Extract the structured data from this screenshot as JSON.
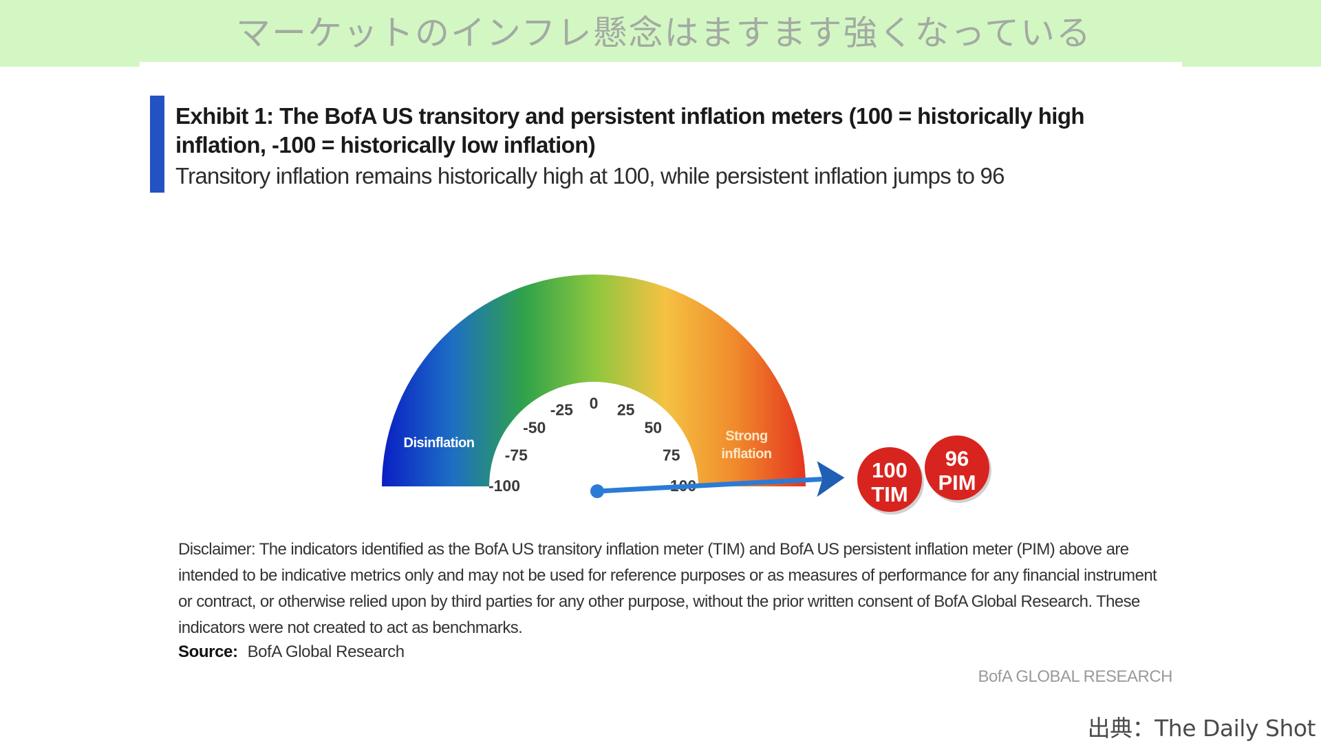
{
  "banner": {
    "title": "マーケットのインフレ懸念はますます強くなっている",
    "background": "#d3f7c3"
  },
  "exhibit": {
    "title": "Exhibit 1:  The BofA US transitory and persistent inflation meters (100 = historically high inflation, -100 = historically low inflation)",
    "subtitle": "Transitory inflation remains historically high at 100, while persistent inflation jumps to 96",
    "accent_color": "#2352c4"
  },
  "chart_data": {
    "type": "gauge",
    "scale_min": -100,
    "scale_max": 100,
    "ticks": [
      "-100",
      "-75",
      "-50",
      "-25",
      "0",
      "25",
      "50",
      "75",
      "100"
    ],
    "tick_values": [
      -100,
      -75,
      -50,
      -25,
      0,
      25,
      50,
      75,
      100
    ],
    "zone_labels": {
      "low": "Disinflation",
      "high_line1": "Strong",
      "high_line2": "inflation"
    },
    "color_stops": [
      "#0a1fc4",
      "#1d6fc4",
      "#2fa24a",
      "#8cc63f",
      "#f5c242",
      "#f08a2c",
      "#e5341f"
    ],
    "needle_value": 100,
    "indicators": [
      {
        "value": 100,
        "value_label": "100",
        "label": "TIM",
        "name": "BofA US transitory inflation meter"
      },
      {
        "value": 96,
        "value_label": "96",
        "label": "PIM",
        "name": "BofA US persistent inflation meter"
      }
    ],
    "indicator_color": "#d8241f",
    "needle_color": "#2b7bd6"
  },
  "disclaimer": {
    "text": "Disclaimer: The indicators identified as the BofA US transitory inflation meter (TIM) and BofA US persistent inflation meter (PIM) above are intended to be indicative metrics only and may not be used for reference purposes or as measures of performance for any financial instrument or contract, or otherwise relied upon by third parties for any other purpose, without the prior written consent of BofA Global Research. These indicators were not created to act as benchmarks."
  },
  "source": {
    "label": "Source:",
    "text": "BofA Global Research"
  },
  "brand": "BofA GLOBAL RESEARCH",
  "credit": "出典：The Daily Shot"
}
